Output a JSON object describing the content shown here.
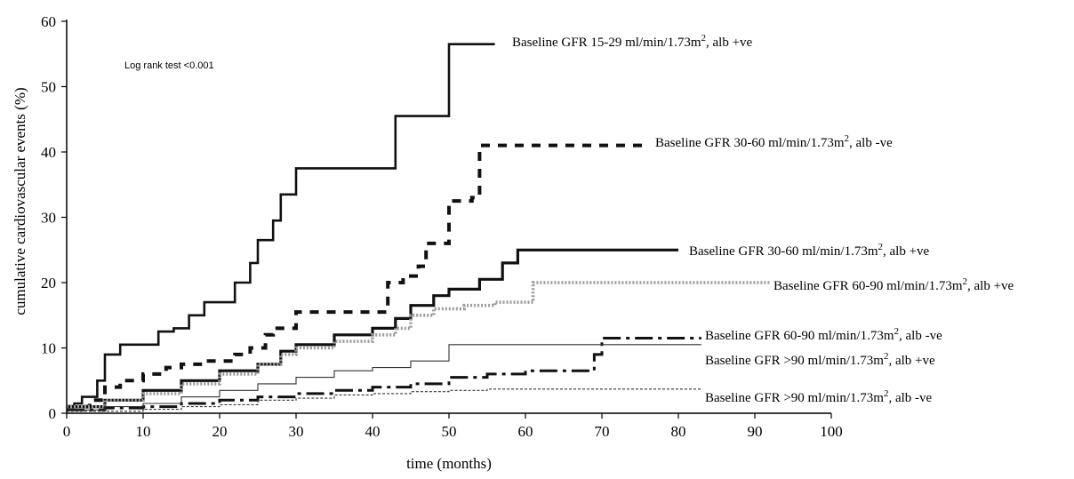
{
  "chart_data": {
    "type": "line",
    "title": "",
    "xlabel": "time (months)",
    "ylabel": "cumulative cardiovascular events (%)",
    "xlim": [
      0,
      100
    ],
    "ylim": [
      0,
      60
    ],
    "xticks": [
      "0",
      "10",
      "20",
      "30",
      "40",
      "50",
      "60",
      "70",
      "80",
      "90",
      "100"
    ],
    "yticks": [
      "0",
      "10",
      "20",
      "30",
      "40",
      "50",
      "60"
    ],
    "grid": false,
    "legend_placement": "right-of-series",
    "annotation": "Log rank test <0.001",
    "series": [
      {
        "name": "Baseline GFR 15-29 ml/min/1.73m², alb +ve",
        "label_main": "Baseline GFR 15-29 ml/min/1.73m",
        "label_sup": "2",
        "label_tail": ", alb +ve",
        "x": [
          0,
          1,
          2,
          4,
          5,
          7,
          10,
          12,
          14,
          16,
          18,
          22,
          24,
          25,
          27,
          28,
          30,
          33,
          42,
          43,
          49,
          50,
          56
        ],
        "y": [
          1,
          1.5,
          2.5,
          5,
          9,
          10.5,
          10.5,
          12.5,
          13,
          15,
          17,
          20,
          23,
          26.5,
          29.5,
          33.5,
          37.5,
          37.5,
          37.5,
          45.5,
          45.5,
          56.5,
          56.5
        ]
      },
      {
        "name": "Baseline GFR 30-60 ml/min/1.73m², alb -ve",
        "label_main": "Baseline GFR 30-60 ml/min/1.73m",
        "label_sup": "2",
        "label_tail": ", alb -ve",
        "x": [
          0,
          3,
          5,
          7,
          10,
          13,
          15,
          18,
          22,
          24,
          26,
          27,
          30,
          34,
          40,
          42,
          44,
          46,
          47,
          49,
          50,
          53,
          54,
          76
        ],
        "y": [
          1,
          2,
          4,
          5,
          6,
          7,
          7.5,
          8,
          9,
          10,
          12,
          13,
          15.5,
          15.5,
          15.5,
          20,
          21,
          22.5,
          26,
          26,
          32.5,
          33,
          41,
          41
        ]
      },
      {
        "name": "Baseline GFR 30-60 ml/min/1.73m², alb +ve",
        "label_main": "Baseline GFR 30-60 ml/min/1.73m",
        "label_sup": "2",
        "label_tail": ", alb +ve",
        "x": [
          0,
          5,
          10,
          15,
          20,
          25,
          28,
          30,
          35,
          40,
          43,
          45,
          48,
          50,
          54,
          57,
          59,
          80
        ],
        "y": [
          1,
          2,
          3.5,
          5,
          6.5,
          7.5,
          9.5,
          10.5,
          12,
          13,
          14.5,
          16.5,
          18,
          19,
          20.5,
          23,
          25,
          25
        ]
      },
      {
        "name": "Baseline GFR 60-90 ml/min/1.73m², alb +ve",
        "label_main": "Baseline GFR 60-90 ml/min/1.73m",
        "label_sup": "2",
        "label_tail": ", alb +ve",
        "x": [
          0,
          5,
          10,
          15,
          20,
          25,
          28,
          30,
          35,
          40,
          43,
          45,
          48,
          52,
          56,
          60,
          61,
          92
        ],
        "y": [
          1,
          2,
          3,
          4.5,
          6,
          7.5,
          9,
          10,
          11,
          12,
          13,
          15,
          16,
          16.5,
          17,
          17,
          20,
          20
        ]
      },
      {
        "name": "Baseline GFR 60-90 ml/min/1.73m², alb -ve",
        "label_main": "Baseline GFR 60-90 ml/min/1.73m",
        "label_sup": "2",
        "label_tail": ", alb -ve",
        "x": [
          0,
          5,
          10,
          15,
          20,
          25,
          30,
          35,
          40,
          45,
          50,
          55,
          60,
          65,
          68,
          69,
          70,
          83
        ],
        "y": [
          0.5,
          0.8,
          1,
          1.5,
          2,
          2.5,
          3,
          3.5,
          4,
          4.5,
          5.5,
          6,
          6.5,
          6.5,
          6.5,
          9,
          11.5,
          11.5
        ]
      },
      {
        "name": "Baseline GFR >90 ml/min/1.73m², alb +ve",
        "label_main": "Baseline GFR >90 ml/min/1.73m",
        "label_sup": "2",
        "label_tail": ", alb +ve",
        "x": [
          0,
          5,
          10,
          15,
          20,
          25,
          30,
          35,
          40,
          45,
          50,
          60,
          70,
          83
        ],
        "y": [
          0.5,
          1,
          1.5,
          2.5,
          3.5,
          4.5,
          5.5,
          6.5,
          7,
          8,
          10.5,
          10.5,
          10.5,
          10.5
        ]
      },
      {
        "name": "Baseline GFR >90 ml/min/1.73m², alb -ve",
        "label_main": "Baseline GFR >90 ml/min/1.73m",
        "label_sup": "2",
        "label_tail": ", alb -ve",
        "x": [
          0,
          10,
          15,
          20,
          25,
          30,
          35,
          40,
          45,
          50,
          55,
          60,
          70,
          83
        ],
        "y": [
          0.3,
          0.6,
          1,
          1.3,
          2,
          2.3,
          2.8,
          3,
          3.3,
          3.5,
          3.7,
          3.7,
          3.7,
          3.7
        ]
      }
    ]
  }
}
